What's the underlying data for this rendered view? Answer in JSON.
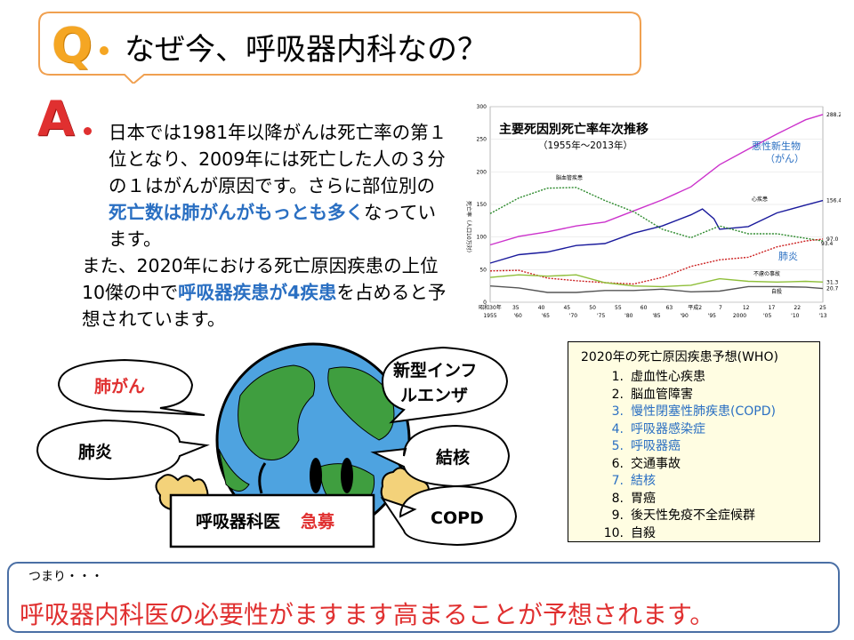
{
  "question": {
    "letter": "Q",
    "text": "なぜ今、呼吸器内科なの？"
  },
  "answer": {
    "letter": "A",
    "p1_a": "日本では1981年以降がんは死亡率の第１位となり、2009年には死亡した人の３分の１はがんが原因です。さらに部位別の",
    "p1_b": "死亡数は肺がんがもっとも多く",
    "p1_c": "なっています。",
    "p2_a": "また、2020年における死亡原因疾患の上位10傑の中で",
    "p2_b": "呼吸器疾患が4疾患",
    "p2_c": "を占めると予想されています。"
  },
  "chart_data": {
    "type": "line",
    "title": "主要死因別死亡率年次推移",
    "subtitle": "（1955年～2013年）",
    "ylabel": "死亡率（人口10万対）",
    "ylim": [
      0,
      300
    ],
    "yticks": [
      "0",
      "50",
      "100",
      "150",
      "200",
      "250",
      "300"
    ],
    "xticks_top": [
      "昭和30年",
      "35",
      "40",
      "45",
      "50",
      "55",
      "60",
      "63",
      "平成2",
      "7",
      "12",
      "17",
      "22",
      "25"
    ],
    "xticks_bottom": [
      "1955",
      "'60",
      "'65",
      "'70",
      "'75",
      "'80",
      "'85",
      "'90",
      "'95",
      "2000",
      "'05",
      "'10",
      "'13"
    ],
    "series": [
      {
        "name": "悪性新生物",
        "name2": "（がん）",
        "color": "#cc33cc",
        "end_label": "288.2",
        "x": [
          1955,
          1960,
          1965,
          1970,
          1975,
          1980,
          1985,
          1990,
          1995,
          2000,
          2005,
          2010,
          2013
        ],
        "values": [
          88,
          101,
          108,
          117,
          123,
          140,
          157,
          177,
          211,
          235,
          258,
          280,
          288
        ]
      },
      {
        "name": "心疾患",
        "color": "#1a1a9c",
        "end_label": "156.4",
        "x": [
          1955,
          1960,
          1965,
          1970,
          1975,
          1980,
          1985,
          1990,
          1992,
          1994,
          1995,
          2000,
          2005,
          2010,
          2013
        ],
        "values": [
          60,
          73,
          77,
          87,
          90,
          106,
          117,
          134,
          143,
          128,
          112,
          116,
          137,
          149,
          156
        ]
      },
      {
        "name": "脳血管疾患",
        "color": "#2d8a2d",
        "end_label": "",
        "x": [
          1955,
          1960,
          1965,
          1970,
          1975,
          1980,
          1985,
          1990,
          1995,
          2000,
          2005,
          2010,
          2013
        ],
        "values": [
          136,
          160,
          175,
          176,
          156,
          139,
          112,
          99,
          117,
          105,
          105,
          98,
          94
        ]
      },
      {
        "name": "肺炎",
        "color": "#cc2222",
        "end_label": "97.0",
        "x": [
          1955,
          1960,
          1965,
          1970,
          1975,
          1980,
          1985,
          1990,
          1995,
          2000,
          2005,
          2010,
          2013
        ],
        "values": [
          48,
          49,
          37,
          33,
          30,
          28,
          38,
          55,
          65,
          69,
          85,
          94,
          97
        ]
      },
      {
        "name": "不慮の事故",
        "color": "#8fbf3a",
        "end_label": "31.3",
        "x": [
          1955,
          1960,
          1965,
          1970,
          1975,
          1980,
          1985,
          1990,
          1995,
          2000,
          2005,
          2010,
          2013
        ],
        "values": [
          38,
          42,
          40,
          42,
          30,
          25,
          24,
          26,
          36,
          32,
          31,
          32,
          31
        ]
      },
      {
        "name": "自殺",
        "color": "#555555",
        "end_label": "20.7",
        "x": [
          1955,
          1960,
          1965,
          1970,
          1975,
          1980,
          1985,
          1990,
          1995,
          2000,
          2005,
          2010,
          2013
        ],
        "values": [
          25,
          22,
          15,
          15,
          18,
          18,
          20,
          16,
          17,
          24,
          24,
          23,
          21
        ]
      }
    ],
    "extra_label": "93.4"
  },
  "who": {
    "title": "2020年の死亡原因疾患予想(WHO)",
    "items": [
      {
        "num": "1.",
        "label": "虚血性心疾患",
        "highlight": false
      },
      {
        "num": "2.",
        "label": "脳血管障害",
        "highlight": false
      },
      {
        "num": "3.",
        "label": "慢性閉塞性肺疾患(COPD)",
        "highlight": true
      },
      {
        "num": "4.",
        "label": "呼吸器感染症",
        "highlight": true
      },
      {
        "num": "5.",
        "label": "呼吸器癌",
        "highlight": true
      },
      {
        "num": "6.",
        "label": "交通事故",
        "highlight": false
      },
      {
        "num": "7.",
        "label": "結核",
        "highlight": true
      },
      {
        "num": "8.",
        "label": "胃癌",
        "highlight": false
      },
      {
        "num": "9.",
        "label": "後天性免疫不全症候群",
        "highlight": false
      },
      {
        "num": "10.",
        "label": "自殺",
        "highlight": false
      }
    ]
  },
  "illustration": {
    "lung_cancer": "肺がん",
    "pneumonia": "肺炎",
    "influenza_1": "新型インフ",
    "influenza_2": "ルエンザ",
    "tuberculosis": "結核",
    "copd": "COPD",
    "sign_a": "呼吸器科医",
    "sign_b": "急募"
  },
  "conclusion": {
    "lead": "つまり・・・",
    "main": "呼吸器内科医の必要性がますます高まることが予想されます。"
  },
  "colors": {
    "blue": "#2a6fc2",
    "red": "#e03030",
    "orange": "#f5a623"
  }
}
